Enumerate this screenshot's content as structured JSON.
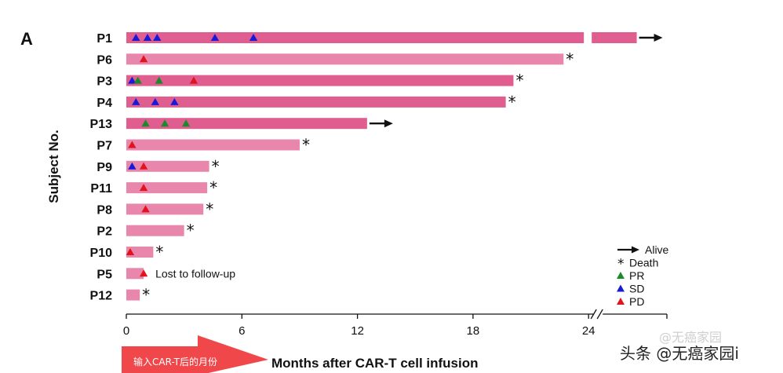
{
  "panel_label": "A",
  "watermark": {
    "faint_text": "@无癌家园",
    "main_text": "头条 @无癌家园i"
  },
  "chart_data": {
    "type": "bar",
    "orientation": "horizontal",
    "ylabel": "Subject No.",
    "xlabel": "Months after CAR-T cell infusion",
    "x_ticks": [
      0,
      6,
      12,
      18,
      24
    ],
    "xlim": [
      0,
      28
    ],
    "axis_break_at": 24,
    "arrow_label": "输入CAR-T后的月份",
    "colors": {
      "bar_dark": "#e05d90",
      "bar_light": "#e986ab",
      "PR": "#1b8a2b",
      "SD": "#1a1ad6",
      "PD": "#e0141e"
    },
    "subjects": [
      {
        "id": "P1",
        "months": 26.5,
        "status": "alive",
        "shade": "dark",
        "events": [
          {
            "t": 0.5,
            "type": "SD"
          },
          {
            "t": 1.1,
            "type": "SD"
          },
          {
            "t": 1.6,
            "type": "SD"
          },
          {
            "t": 4.6,
            "type": "SD"
          },
          {
            "t": 6.6,
            "type": "SD"
          }
        ]
      },
      {
        "id": "P6",
        "months": 22.7,
        "status": "death",
        "shade": "light",
        "events": [
          {
            "t": 0.9,
            "type": "PD"
          }
        ]
      },
      {
        "id": "P3",
        "months": 20.1,
        "status": "death",
        "shade": "dark",
        "events": [
          {
            "t": 0.3,
            "type": "SD"
          },
          {
            "t": 0.6,
            "type": "PR"
          },
          {
            "t": 1.7,
            "type": "PR"
          },
          {
            "t": 3.5,
            "type": "PD"
          }
        ]
      },
      {
        "id": "P4",
        "months": 19.7,
        "status": "death",
        "shade": "dark",
        "events": [
          {
            "t": 0.5,
            "type": "SD"
          },
          {
            "t": 1.5,
            "type": "SD"
          },
          {
            "t": 2.5,
            "type": "SD"
          }
        ]
      },
      {
        "id": "P13",
        "months": 12.5,
        "status": "alive",
        "shade": "dark",
        "events": [
          {
            "t": 1.0,
            "type": "PR"
          },
          {
            "t": 2.0,
            "type": "PR"
          },
          {
            "t": 3.1,
            "type": "PR"
          }
        ]
      },
      {
        "id": "P7",
        "months": 9.0,
        "status": "death",
        "shade": "light",
        "events": [
          {
            "t": 0.3,
            "type": "PD"
          }
        ]
      },
      {
        "id": "P9",
        "months": 4.3,
        "status": "death",
        "shade": "light",
        "events": [
          {
            "t": 0.3,
            "type": "SD"
          },
          {
            "t": 0.9,
            "type": "PD"
          }
        ]
      },
      {
        "id": "P11",
        "months": 4.2,
        "status": "death",
        "shade": "light",
        "events": [
          {
            "t": 0.9,
            "type": "PD"
          }
        ]
      },
      {
        "id": "P8",
        "months": 4.0,
        "status": "death",
        "shade": "light",
        "events": [
          {
            "t": 1.0,
            "type": "PD"
          }
        ]
      },
      {
        "id": "P2",
        "months": 3.0,
        "status": "death",
        "shade": "light",
        "events": []
      },
      {
        "id": "P10",
        "months": 1.4,
        "status": "death",
        "shade": "light",
        "events": [
          {
            "t": 0.2,
            "type": "PD"
          }
        ]
      },
      {
        "id": "P5",
        "months": 0.9,
        "status": "lost",
        "shade": "light",
        "annotation": "Lost to follow-up",
        "events": [
          {
            "t": 0.9,
            "type": "PD"
          }
        ]
      },
      {
        "id": "P12",
        "months": 0.7,
        "status": "death",
        "shade": "light",
        "events": []
      }
    ],
    "legend": {
      "placement": "bottom-right",
      "items": [
        {
          "label": "Alive",
          "symbol": "arrow"
        },
        {
          "label": "Death",
          "symbol": "asterisk"
        },
        {
          "label": "PR",
          "symbol": "triangle",
          "color": "#1b8a2b"
        },
        {
          "label": "SD",
          "symbol": "triangle",
          "color": "#1a1ad6"
        },
        {
          "label": "PD",
          "symbol": "triangle",
          "color": "#e0141e"
        }
      ]
    }
  }
}
